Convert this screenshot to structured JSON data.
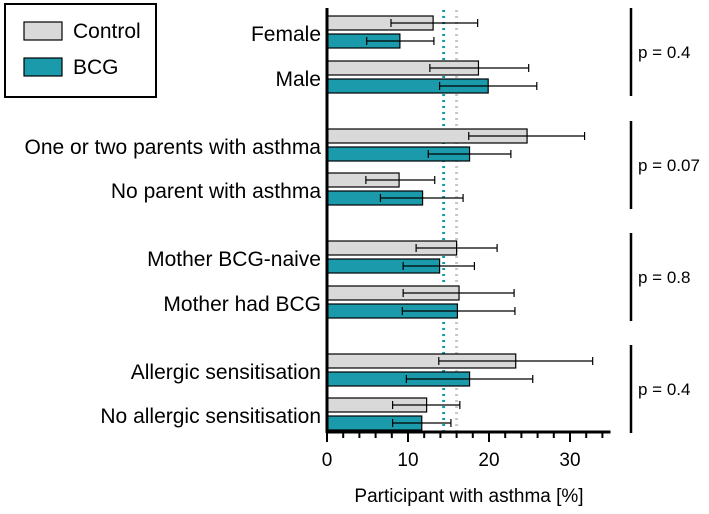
{
  "chart_data": {
    "type": "bar",
    "orientation": "horizontal",
    "xlabel": "Participant with asthma [%]",
    "xlim": [
      0,
      35
    ],
    "x_ticks": [
      "0",
      "10",
      "20",
      "30"
    ],
    "series": [
      {
        "name": "Control",
        "color": "#d9d9d9"
      },
      {
        "name": "BCG",
        "color": "#1a9aaa"
      }
    ],
    "categories": [
      "Female",
      "Male",
      "One or two parents with asthma",
      "No parent with asthma",
      "Mother BCG-naive",
      "Mother had BCG",
      "Allergic sensitisation",
      "No allergic sensitisation"
    ],
    "values": {
      "Control": [
        13.1,
        18.7,
        24.7,
        8.9,
        16.0,
        16.3,
        23.3,
        12.3
      ],
      "BCG": [
        9.0,
        19.9,
        17.6,
        11.8,
        13.9,
        16.1,
        17.6,
        11.7
      ]
    },
    "error_low": {
      "Control": [
        7.9,
        12.7,
        17.5,
        4.8,
        11.0,
        9.4,
        13.8,
        8.1
      ],
      "BCG": [
        4.9,
        13.9,
        12.5,
        6.6,
        9.4,
        9.3,
        9.8,
        8.1
      ]
    },
    "error_high": {
      "Control": [
        18.6,
        24.9,
        31.8,
        13.3,
        21.0,
        23.1,
        32.8,
        16.4
      ],
      "BCG": [
        13.2,
        25.9,
        22.7,
        16.8,
        18.2,
        23.2,
        25.4,
        15.3
      ]
    },
    "reference_lines": [
      {
        "series": "BCG",
        "value": 14.4,
        "color": "#1a9aaa"
      },
      {
        "series": "Control",
        "value": 16.0,
        "color": "#c8c8c8"
      }
    ],
    "groups": [
      {
        "p_value": "p = 0.4",
        "categories": [
          "Female",
          "Male"
        ]
      },
      {
        "p_value": "p = 0.07",
        "categories": [
          "One or two parents with asthma",
          "No parent with asthma"
        ]
      },
      {
        "p_value": "p = 0.8",
        "categories": [
          "Mother BCG-naive",
          "Mother had BCG"
        ]
      },
      {
        "p_value": "p = 0.4",
        "categories": [
          "Allergic sensitisation",
          "No allergic sensitisation"
        ]
      }
    ],
    "legend": {
      "position": "top-left",
      "entries": [
        "Control",
        "BCG"
      ]
    }
  }
}
